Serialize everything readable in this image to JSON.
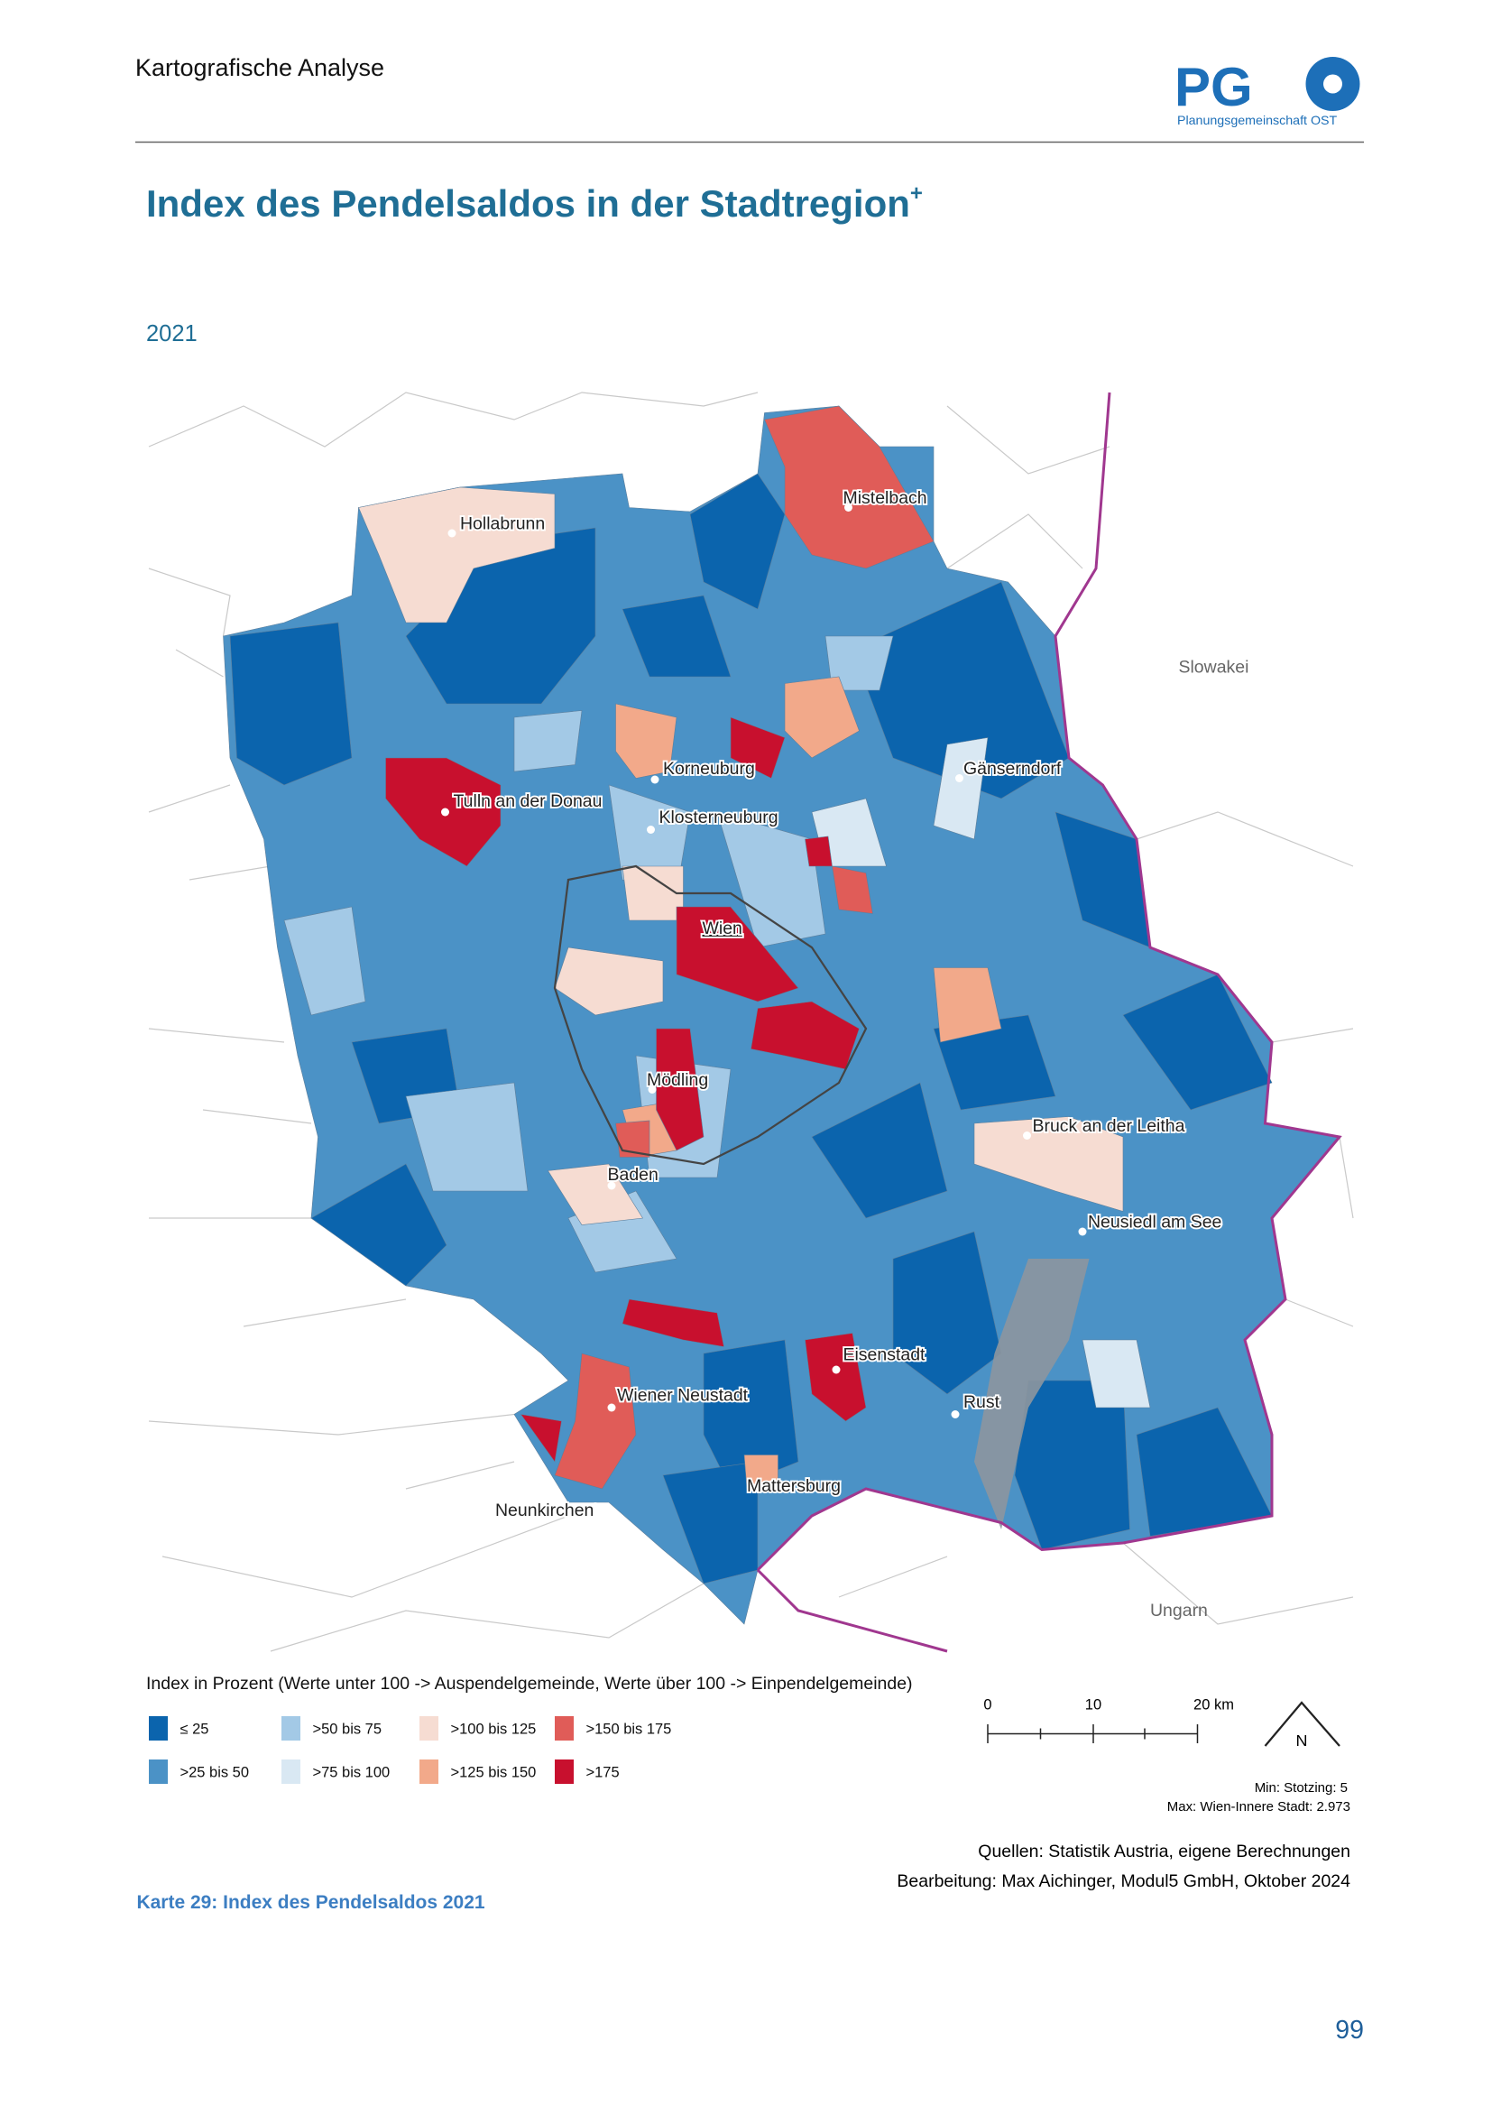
{
  "header": {
    "section": "Kartografische Analyse",
    "logo_text": "PG",
    "logo_subtitle": "Planungsgemeinschaft OST"
  },
  "title": {
    "text": "Index des Pendelsaldos in der Stadtregion",
    "superscript": "+"
  },
  "year": "2021",
  "map": {
    "places": [
      "Mistelbach",
      "Hollabrunn",
      "Korneuburg",
      "Tulln an der Donau",
      "Klosterneuburg",
      "Gänserndorf",
      "Wien",
      "Mödling",
      "Bruck an der Leitha",
      "Baden",
      "Neusiedl am See",
      "Eisenstadt",
      "Wiener Neustadt",
      "Rust",
      "Mattersburg",
      "Neunkirchen"
    ],
    "countries": [
      "Slowakei",
      "Ungarn"
    ]
  },
  "legend": {
    "title": "Index in Prozent (Werte unter 100 -> Auspendelgemeinde, Werte über 100 -> Einpendelgemeinde)",
    "items": [
      {
        "label": "≤ 25",
        "color": "#0b64ad"
      },
      {
        "label": ">25 bis 50",
        "color": "#4b92c6"
      },
      {
        "label": ">50 bis 75",
        "color": "#a3c9e6"
      },
      {
        "label": ">75 bis 100",
        "color": "#d9e8f3"
      },
      {
        "label": ">100 bis 125",
        "color": "#f6dcd2"
      },
      {
        "label": ">125 bis 150",
        "color": "#f2a98a"
      },
      {
        "label": ">150 bis 175",
        "color": "#e05c58"
      },
      {
        "label": ">175",
        "color": "#c8102e"
      }
    ]
  },
  "scale": {
    "labels": [
      "0",
      "10",
      "20 km"
    ],
    "north": "N"
  },
  "stats": {
    "min": "Min: Stotzing: 5",
    "max": "Max: Wien-Innere Stadt: 2.973"
  },
  "sources": [
    "Quellen: Statistik Austria, eigene Berechnungen",
    "Bearbeitung: Max Aichinger, Modul5 GmbH, Oktober 2024"
  ],
  "caption": "Karte 29: Index des Pendelsaldos 2021",
  "page_number": "99"
}
